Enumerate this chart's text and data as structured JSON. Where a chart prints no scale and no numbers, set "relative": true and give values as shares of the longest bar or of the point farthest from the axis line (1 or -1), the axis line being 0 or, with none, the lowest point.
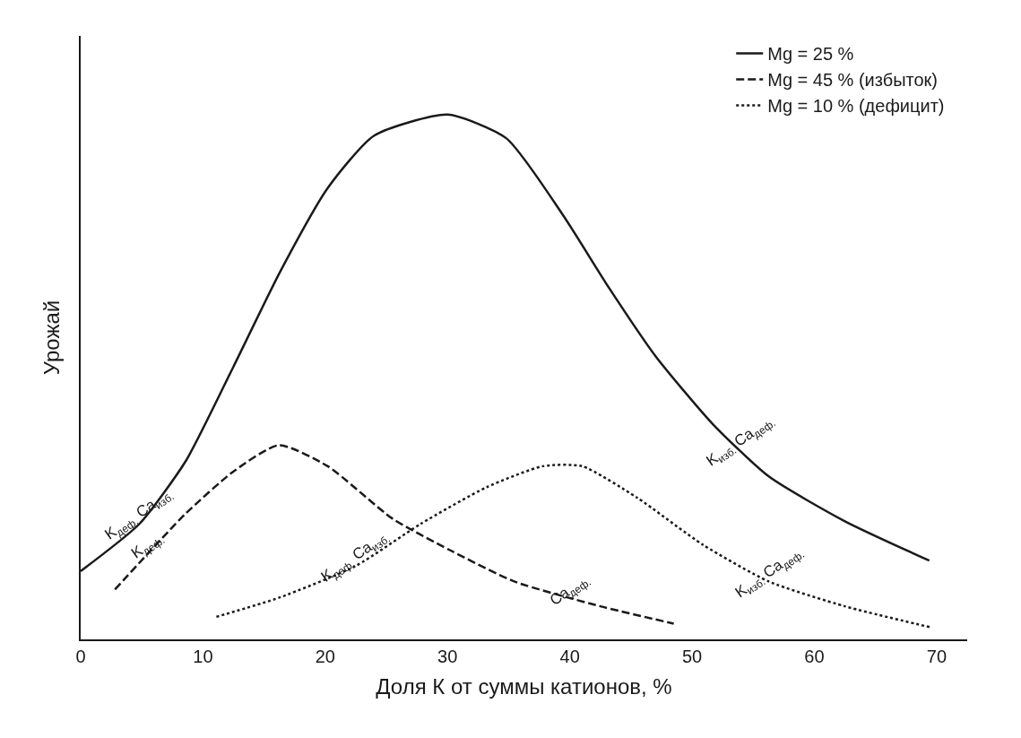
{
  "chart_data": {
    "type": "line",
    "relative": true,
    "xlabel": "Доля К от суммы катионов, %",
    "ylabel": "Урожай",
    "xlim": [
      0,
      72.5
    ],
    "xticks": [
      0,
      10,
      20,
      30,
      40,
      50,
      60,
      70
    ],
    "legend": "top right",
    "series": [
      {
        "name": "Mg = 25 %",
        "color": "#1a1a1a",
        "line_style": "solid",
        "x": [
          0,
          4.8,
          8.6,
          12.5,
          16.3,
          20.2,
          24,
          30,
          34.8,
          39.4,
          43.2,
          47,
          51.7,
          56.3,
          62.5,
          69.4
        ],
        "values": [
          0.13,
          0.22,
          0.34,
          0.52,
          0.7,
          0.86,
          0.96,
          1.0,
          0.955,
          0.81,
          0.67,
          0.54,
          0.41,
          0.31,
          0.225,
          0.15
        ]
      },
      {
        "name": "Mg = 45 % (избыток)",
        "color": "#1a1a1a",
        "line_style": "dashed",
        "x": [
          2.8,
          8.6,
          12.5,
          16.2,
          20.2,
          25.5,
          30.2,
          35.5,
          42.5,
          48.5
        ],
        "values": [
          0.095,
          0.24,
          0.32,
          0.37,
          0.33,
          0.23,
          0.17,
          0.11,
          0.063,
          0.03
        ]
      },
      {
        "name": "Mg = 10 % (дефицит)",
        "color": "#1a1a1a",
        "line_style": "dotted",
        "x": [
          11.1,
          16.3,
          22.5,
          27.8,
          33.2,
          37.8,
          41,
          45.5,
          50.9,
          56.3,
          62.5,
          69.5
        ],
        "values": [
          0.043,
          0.08,
          0.14,
          0.22,
          0.29,
          0.33,
          0.33,
          0.27,
          0.18,
          0.11,
          0.063,
          0.023
        ]
      }
    ],
    "annotations": [
      {
        "text": "K$_{деф.}$ Ca$_{изб.}$",
        "x": 4.8,
        "y": 0.22
      },
      {
        "text": "K$_{деф.}$",
        "x": 5.5,
        "y": 0.16
      },
      {
        "text": "K$_{деф.}$ Ca$_{изб.}$",
        "x": 22.5,
        "y": 0.14
      },
      {
        "text": "Ca$_{деф.}$",
        "x": 40,
        "y": 0.075
      },
      {
        "text": "K$_{изб.}$ Ca$_{деф.}$",
        "x": 54,
        "y": 0.36
      },
      {
        "text": "K$_{изб.}$ Ca$_{деф.}$",
        "x": 56.3,
        "y": 0.11
      }
    ]
  }
}
